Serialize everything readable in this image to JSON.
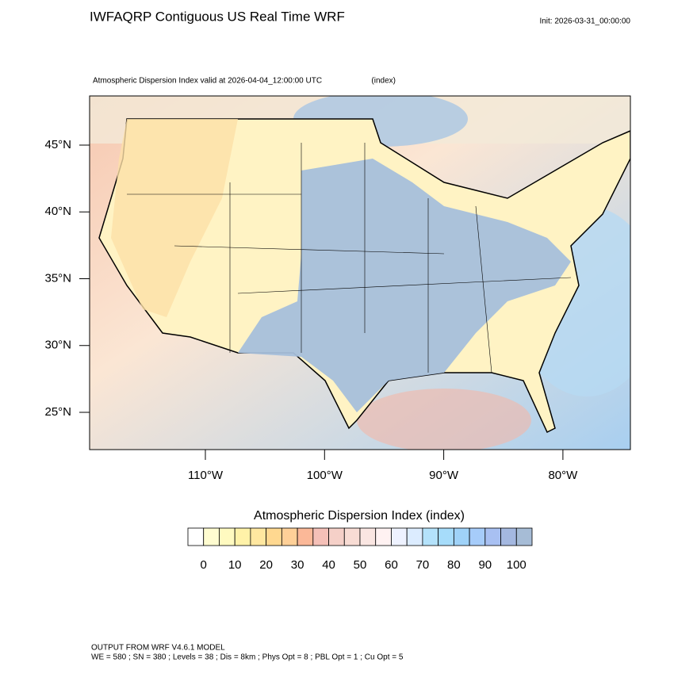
{
  "header": {
    "title": "IWFAQRP Contiguous US Real Time WRF",
    "init": "Init: 2026-03-31_00:00:00"
  },
  "map": {
    "subtitle": "Atmospheric Dispersion Index valid at 2026-04-04_12:00:00 UTC",
    "units": "(index)",
    "lat_ticks": [
      {
        "value": 45,
        "label": "45°N"
      },
      {
        "value": 40,
        "label": "40°N"
      },
      {
        "value": 35,
        "label": "35°N"
      },
      {
        "value": 30,
        "label": "30°N"
      },
      {
        "value": 25,
        "label": "25°N"
      }
    ],
    "lon_ticks": [
      {
        "value": 110,
        "label": "110°W"
      },
      {
        "value": 100,
        "label": "100°W"
      },
      {
        "value": 90,
        "label": "90°W"
      },
      {
        "value": 80,
        "label": "80°W"
      }
    ]
  },
  "colorbar": {
    "title": "Atmospheric Dispersion Index  (index)",
    "colors": [
      "#ffffff",
      "#fffcd0",
      "#fffac0",
      "#fff2a8",
      "#ffe7a0",
      "#ffd890",
      "#ffd098",
      "#fbb898",
      "#f5c0b8",
      "#f5d0c8",
      "#f8dcd4",
      "#fae6e2",
      "#fff2f2",
      "#eef2ff",
      "#dcecff",
      "#b4e2fb",
      "#a6dcfa",
      "#9fd2f8",
      "#a6ccfa",
      "#a8c0f2",
      "#a4b8e0",
      "#a6bcd6"
    ],
    "levels": [
      0,
      10,
      20,
      30,
      40,
      50,
      60,
      70,
      80,
      90,
      100
    ]
  },
  "footer": {
    "line1": "OUTPUT FROM WRF V4.6.1 MODEL",
    "line2": "WE = 580 ; SN = 380 ; Levels = 38 ; Dis = 8km ; Phys Opt = 8 ; PBL Opt = 1 ; Cu Opt = 5"
  }
}
